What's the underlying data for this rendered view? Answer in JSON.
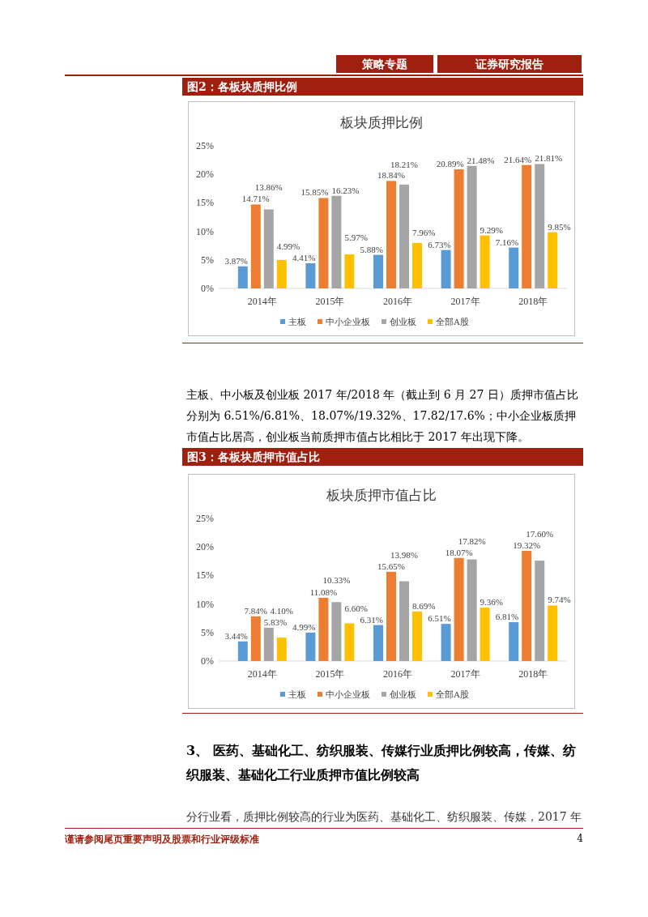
{
  "chart_data": [
    {
      "type": "bar",
      "title": "板块质押比例",
      "categories": [
        "2014年",
        "2015年",
        "2016年",
        "2017年",
        "2018年"
      ],
      "series": [
        {
          "name": "主板",
          "color": "#5b9bd5",
          "values": [
            3.87,
            4.41,
            5.88,
            6.73,
            7.16
          ],
          "value_labels": [
            "3.87%",
            "4.41%",
            "5.88%",
            "6.73%",
            "7.16%"
          ]
        },
        {
          "name": "中小企业板",
          "color": "#ed7d31",
          "values": [
            14.71,
            15.85,
            18.84,
            20.89,
            21.64
          ],
          "value_labels": [
            "14.71%",
            "15.85%",
            "18.84%",
            "20.89%",
            "21.64%"
          ]
        },
        {
          "name": "创业板",
          "color": "#a5a5a5",
          "values": [
            13.86,
            16.23,
            18.21,
            21.48,
            21.81
          ],
          "value_labels": [
            "13.86%",
            "16.23%",
            "18.21%",
            "21.48%",
            "21.81%"
          ]
        },
        {
          "name": "全部A股",
          "color": "#ffc000",
          "values": [
            4.99,
            5.97,
            7.96,
            9.29,
            9.85
          ],
          "value_labels": [
            "4.99%",
            "5.97%",
            "7.96%",
            "9.29%",
            "9.85%"
          ]
        }
      ],
      "ylim": [
        0,
        25
      ],
      "yticks": [
        {
          "value": 0,
          "label": "0%"
        },
        {
          "value": 5,
          "label": "5%"
        },
        {
          "value": 10,
          "label": "10%"
        },
        {
          "value": 15,
          "label": "15%"
        },
        {
          "value": 20,
          "label": "20%"
        },
        {
          "value": 25,
          "label": "25%"
        }
      ],
      "grid": false,
      "legend": "bottom",
      "annotations": [
        "策略专题",
        "证券研究报告",
        "图2：各板块质押比例",
        "主板、中小板及创业板 2017 年/2018 年（截止到 6 月 27 日）质押市值占比分别为 6.51%/6.81%、18.07%/19.32%、17.82/17.6%；中小企业板质押市值占比居高，创业板当前质押市值占比相比于 2017 年出现下降。"
      ]
    },
    {
      "type": "bar",
      "title": "板块质押市值占比",
      "categories": [
        "2014年",
        "2015年",
        "2016年",
        "2017年",
        "2018年"
      ],
      "series": [
        {
          "name": "主板",
          "color": "#5b9bd5",
          "values": [
            3.44,
            4.99,
            6.31,
            6.51,
            6.81
          ],
          "value_labels": [
            "3.44%",
            "4.99%",
            "6.31%",
            "6.51%",
            "6.81%"
          ]
        },
        {
          "name": "中小企业板",
          "color": "#ed7d31",
          "values": [
            7.84,
            11.08,
            15.65,
            18.07,
            19.32
          ],
          "value_labels": [
            "7.84%",
            "11.08%",
            "15.65%",
            "18.07%",
            "19.32%"
          ]
        },
        {
          "name": "创业板",
          "color": "#a5a5a5",
          "values": [
            5.83,
            10.33,
            13.98,
            17.82,
            17.6
          ],
          "value_labels": [
            "5.83%",
            "10.33%",
            "13.98%",
            "17.82%",
            "17.60%"
          ]
        },
        {
          "name": "全部A股",
          "color": "#ffc000",
          "values": [
            4.1,
            6.6,
            8.69,
            9.36,
            9.74
          ],
          "value_labels": [
            "4.10%",
            "6.60%",
            "8.69%",
            "9.36%",
            "9.74%"
          ]
        }
      ],
      "ylim": [
        0,
        25
      ],
      "yticks": [
        {
          "value": 0,
          "label": "0%"
        },
        {
          "value": 5,
          "label": "5%"
        },
        {
          "value": 10,
          "label": "10%"
        },
        {
          "value": 15,
          "label": "15%"
        },
        {
          "value": 20,
          "label": "20%"
        },
        {
          "value": 25,
          "label": "25%"
        }
      ],
      "grid": false,
      "legend": "bottom",
      "annotations": [
        "图3：各板块质押市值占比",
        "3、 医药、基础化工、纺织服装、传媒行业质押比例较高，传媒、纺织服装、基础化工行业质押市值比例较高",
        "分行业看，质押比例较高的行业为医药、基础化工、纺织服装、传媒，2017 年",
        "谨请参阅尾页重要声明及股票和行业评级标准",
        "4"
      ]
    }
  ]
}
